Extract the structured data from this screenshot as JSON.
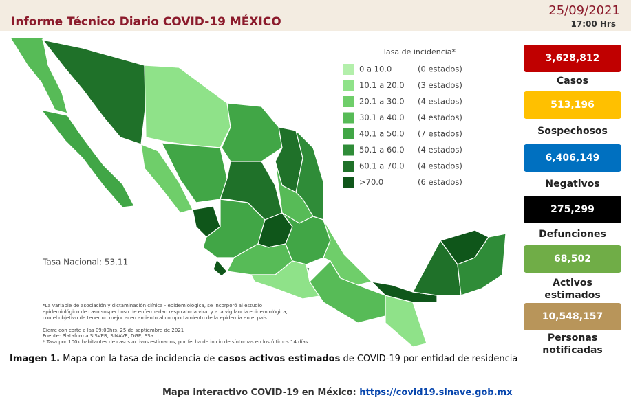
{
  "header": {
    "title": "Informe Técnico Diario COVID-19 MÉXICO",
    "date": "25/09/2021",
    "time": "17:00 Hrs"
  },
  "legend": {
    "title": "Tasa de incidencia*",
    "items": [
      {
        "range": "0  a  10.0",
        "count": "(0 estados)",
        "color": "#b3efab"
      },
      {
        "range": "10.1 a 20.0",
        "count": "(3 estados)",
        "color": "#8fe289"
      },
      {
        "range": "20.1 a 30.0",
        "count": "(4 estados)",
        "color": "#6fce6a"
      },
      {
        "range": "30.1 a 40.0",
        "count": "(4 estados)",
        "color": "#57bb57"
      },
      {
        "range": "40.1 a 50.0",
        "count": "(7 estados)",
        "color": "#41a646"
      },
      {
        "range": "50.1 a 60.0",
        "count": "(4 estados)",
        "color": "#2f8c38"
      },
      {
        "range": "60.1 a 70.0",
        "count": "(4 estados)",
        "color": "#1f7129"
      },
      {
        "range": ">70.0",
        "count": "(6 estados)",
        "color": "#0f561a"
      }
    ]
  },
  "map": {
    "national_rate": "Tasa Nacional: 53.11",
    "notes": [
      "*La variable de asociación y dictaminación clínica - epidemiológica, se incorporó al estudio",
      "epidemiológico de caso sospechoso de enfermedad respiratoria viral y a la vigilancia epidemiológica,",
      "con el objetivo de tener un mejor acercamiento al comportamiento de la epidemia en el país.",
      "Cierre con corte a las 09:00hrs, 25 de septiembre de 2021",
      "Fuente: Plataforma SISVER, SINAVE, DGE, SSa.",
      "* Tasa por 100k habitantes de casos activos estimados, por fecha de inicio de síntomas en los últimos 14 días."
    ]
  },
  "indicators": [
    {
      "value": "3,628,812",
      "label": "Casos",
      "color": "#c00000"
    },
    {
      "value": "513,196",
      "label": "Sospechosos",
      "color": "#ffc000"
    },
    {
      "value": "6,406,149",
      "label": "Negativos",
      "color": "#0070c0"
    },
    {
      "value": "275,299",
      "label": "Defunciones",
      "color": "#000000"
    },
    {
      "value": "68,502",
      "label": "Activos estimados",
      "color": "#70ad47"
    },
    {
      "value": "10,548,157",
      "label": "Personas notificadas",
      "color": "#b8955a"
    }
  ],
  "caption": {
    "bold": "Imagen 1.",
    "text1": "Mapa con la tasa de incidencia de",
    "emphasis": "casos activos estimados",
    "text2": "de COVID-19 por entidad de residencia"
  },
  "footer": {
    "text": "Mapa interactivo COVID-19 en México:",
    "link": "https://covid19.sinave.gob.mx"
  }
}
